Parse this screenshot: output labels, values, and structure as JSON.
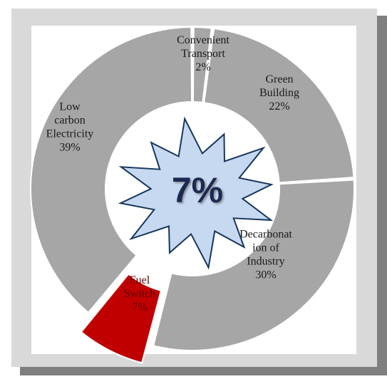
{
  "chart_data": {
    "type": "donut",
    "start_angle_deg": 0,
    "segments": [
      {
        "label_lines": [
          "Convenient",
          "Transport",
          "2%"
        ],
        "value": 2,
        "color": "#a6a6a6"
      },
      {
        "label_lines": [
          "Green",
          "Building",
          "22%"
        ],
        "value": 22,
        "color": "#a6a6a6"
      },
      {
        "label_lines": [
          "Decarbonat",
          "ion of",
          "Industry",
          "30%"
        ],
        "value": 30,
        "color": "#a6a6a6"
      },
      {
        "label_lines": [
          "Fuel",
          "Switch",
          "7%"
        ],
        "value": 7,
        "color": "#c00000",
        "exploded": true
      },
      {
        "label_lines": [
          "Low",
          "carbon",
          "Electricity",
          "39%"
        ],
        "value": 39,
        "color": "#a6a6a6"
      }
    ],
    "center_text": "7%",
    "colors": {
      "frame_background": "#d9d9d9",
      "frame_shadow": "#7f7f7f",
      "panel": "#ffffff",
      "segment_gray": "#a6a6a6",
      "highlight": "#c00000",
      "starburst_fill": "#c6d9f1",
      "starburst_stroke": "#17375e"
    }
  }
}
